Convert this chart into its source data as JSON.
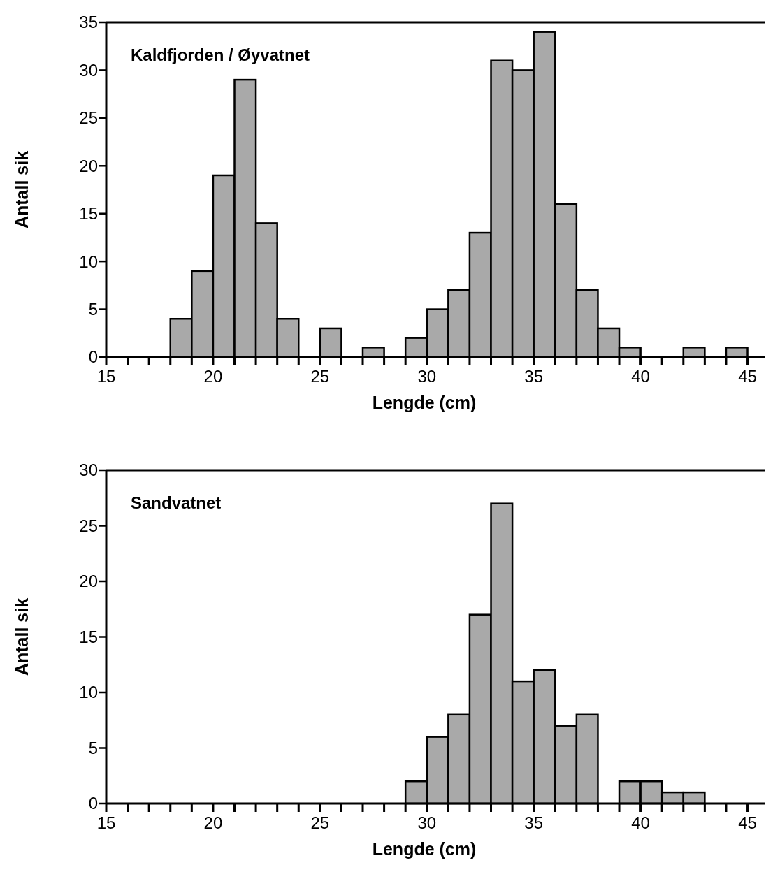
{
  "chart_data": [
    {
      "type": "histogram",
      "title": "Kaldfjorden  /  Øyvatnet",
      "xlabel": "Lengde  (cm)",
      "ylabel": "Antall  sik",
      "bins": [
        18,
        19,
        20,
        21,
        22,
        23,
        24,
        25,
        26,
        27,
        28,
        29,
        30,
        31,
        32,
        33,
        34,
        35,
        36,
        37,
        38,
        39,
        40,
        41,
        42,
        43,
        44,
        45
      ],
      "values": [
        4,
        9,
        19,
        29,
        14,
        4,
        0,
        3,
        0,
        1,
        0,
        2,
        5,
        7,
        13,
        31,
        30,
        34,
        16,
        7,
        3,
        1,
        0,
        0,
        1,
        0,
        1
      ],
      "color": "#a9a9a9",
      "xlim": [
        15,
        45.8
      ],
      "xticks": [
        15,
        {
          "value": 16,
          "label": null
        },
        {
          "value": 17,
          "label": null
        },
        {
          "value": 18,
          "label": null
        },
        {
          "value": 19,
          "label": null
        },
        20,
        {
          "value": 21,
          "label": null
        },
        {
          "value": 22,
          "label": null
        },
        {
          "value": 23,
          "label": null
        },
        {
          "value": 24,
          "label": null
        },
        25,
        {
          "value": 26,
          "label": null
        },
        {
          "value": 27,
          "label": null
        },
        {
          "value": 28,
          "label": null
        },
        {
          "value": 29,
          "label": null
        },
        30,
        {
          "value": 31,
          "label": null
        },
        {
          "value": 32,
          "label": null
        },
        {
          "value": 33,
          "label": null
        },
        {
          "value": 34,
          "label": null
        },
        35,
        {
          "value": 36,
          "label": null
        },
        {
          "value": 37,
          "label": null
        },
        {
          "value": 38,
          "label": null
        },
        {
          "value": 39,
          "label": null
        },
        40,
        {
          "value": 41,
          "label": null
        },
        {
          "value": 42,
          "label": null
        },
        {
          "value": 43,
          "label": null
        },
        {
          "value": 44,
          "label": null
        },
        45
      ],
      "ylim": [
        0,
        35
      ],
      "yticks": [
        0,
        5,
        10,
        15,
        20,
        25,
        30,
        35
      ]
    },
    {
      "type": "histogram",
      "title": "Sandvatnet",
      "xlabel": "Lengde  (cm)",
      "ylabel": "Antall  sik",
      "bins": [
        29,
        30,
        31,
        32,
        33,
        34,
        35,
        36,
        37,
        38,
        39,
        40,
        41,
        42,
        43
      ],
      "values": [
        2,
        6,
        8,
        17,
        27,
        11,
        12,
        7,
        8,
        0,
        2,
        2,
        1,
        1
      ],
      "color": "#a9a9a9",
      "xlim": [
        15,
        45.8
      ],
      "xticks": [
        15,
        {
          "value": 16,
          "label": null
        },
        {
          "value": 17,
          "label": null
        },
        {
          "value": 18,
          "label": null
        },
        {
          "value": 19,
          "label": null
        },
        20,
        {
          "value": 21,
          "label": null
        },
        {
          "value": 22,
          "label": null
        },
        {
          "value": 23,
          "label": null
        },
        {
          "value": 24,
          "label": null
        },
        25,
        {
          "value": 26,
          "label": null
        },
        {
          "value": 27,
          "label": null
        },
        {
          "value": 28,
          "label": null
        },
        {
          "value": 29,
          "label": null
        },
        30,
        {
          "value": 31,
          "label": null
        },
        {
          "value": 32,
          "label": null
        },
        {
          "value": 33,
          "label": null
        },
        {
          "value": 34,
          "label": null
        },
        35,
        {
          "value": 36,
          "label": null
        },
        {
          "value": 37,
          "label": null
        },
        {
          "value": 38,
          "label": null
        },
        {
          "value": 39,
          "label": null
        },
        40,
        {
          "value": 41,
          "label": null
        },
        {
          "value": 42,
          "label": null
        },
        {
          "value": 43,
          "label": null
        },
        {
          "value": 44,
          "label": null
        },
        45
      ],
      "ylim": [
        0,
        30
      ],
      "yticks": [
        0,
        5,
        10,
        15,
        20,
        25,
        30
      ]
    }
  ]
}
